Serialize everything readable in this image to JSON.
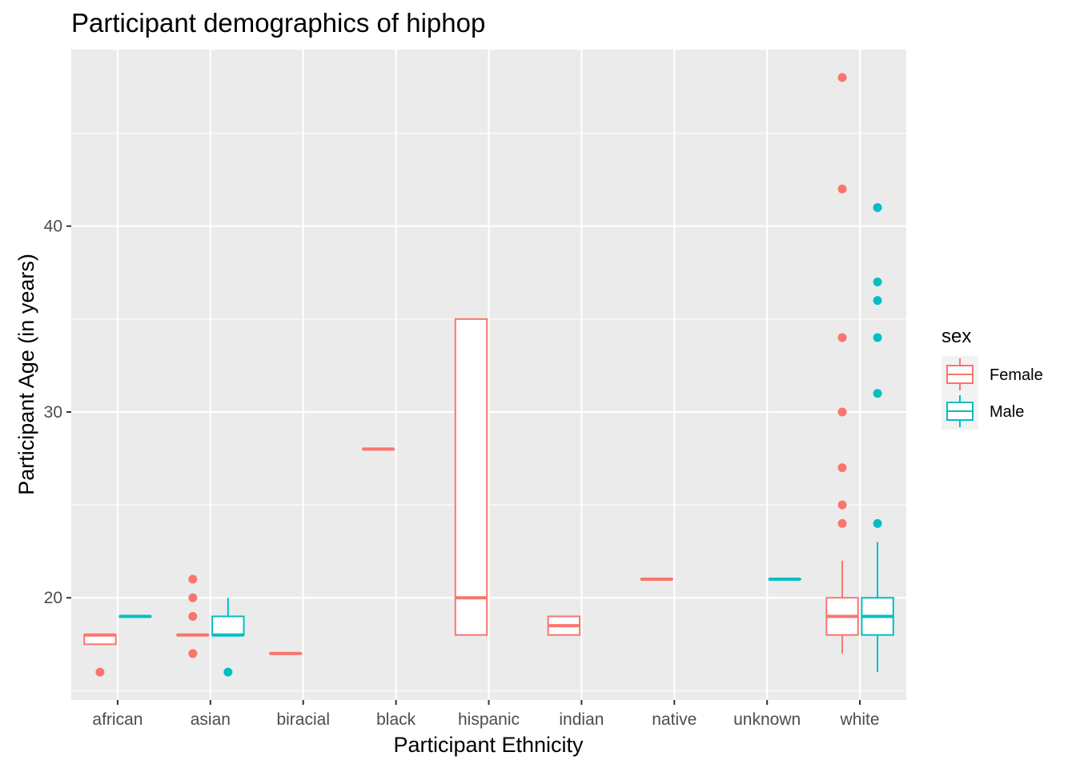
{
  "chart_data": {
    "type": "boxplot",
    "title": "Participant demographics of hiphop",
    "xlabel": "Participant Ethnicity",
    "ylabel": "Participant Age (in years)",
    "ylim": [
      14.5,
      49.5
    ],
    "y_ticks": [
      20,
      30,
      40
    ],
    "grid": true,
    "legend": {
      "title": "sex",
      "position": "right"
    },
    "categories": [
      "african",
      "asian",
      "biracial",
      "black",
      "hispanic",
      "indian",
      "native",
      "unknown",
      "white"
    ],
    "series": [
      {
        "name": "Female",
        "color": "#F8766D",
        "boxes": [
          {
            "category": "african",
            "lower": 17.5,
            "q1": 17.5,
            "median": 18,
            "q3": 18,
            "upper": 18,
            "outliers": [
              16
            ]
          },
          {
            "category": "asian",
            "lower": 18,
            "q1": 18,
            "median": 18,
            "q3": 18,
            "upper": 18,
            "outliers": [
              17,
              19,
              20,
              21
            ]
          },
          {
            "category": "biracial",
            "lower": 17,
            "q1": 17,
            "median": 17,
            "q3": 17,
            "upper": 17,
            "outliers": []
          },
          {
            "category": "black",
            "lower": 28,
            "q1": 28,
            "median": 28,
            "q3": 28,
            "upper": 28,
            "outliers": []
          },
          {
            "category": "hispanic",
            "lower": 18,
            "q1": 18,
            "median": 20,
            "q3": 35,
            "upper": 35,
            "outliers": []
          },
          {
            "category": "indian",
            "lower": 18,
            "q1": 18,
            "median": 18.5,
            "q3": 19,
            "upper": 19,
            "outliers": []
          },
          {
            "category": "native",
            "lower": 21,
            "q1": 21,
            "median": 21,
            "q3": 21,
            "upper": 21,
            "outliers": []
          },
          {
            "category": "white",
            "lower": 17,
            "q1": 18,
            "median": 19,
            "q3": 20,
            "upper": 22,
            "outliers": [
              24,
              25,
              27,
              30,
              34,
              42,
              48
            ]
          }
        ]
      },
      {
        "name": "Male",
        "color": "#00BFC4",
        "boxes": [
          {
            "category": "african",
            "lower": 19,
            "q1": 19,
            "median": 19,
            "q3": 19,
            "upper": 19,
            "outliers": []
          },
          {
            "category": "asian",
            "lower": 18,
            "q1": 18,
            "median": 18,
            "q3": 19,
            "upper": 20,
            "outliers": [
              16
            ]
          },
          {
            "category": "unknown",
            "lower": 21,
            "q1": 21,
            "median": 21,
            "q3": 21,
            "upper": 21,
            "outliers": []
          },
          {
            "category": "white",
            "lower": 16,
            "q1": 18,
            "median": 19,
            "q3": 20,
            "upper": 23,
            "outliers": [
              24,
              31,
              34,
              36,
              37,
              41
            ]
          }
        ]
      }
    ]
  }
}
